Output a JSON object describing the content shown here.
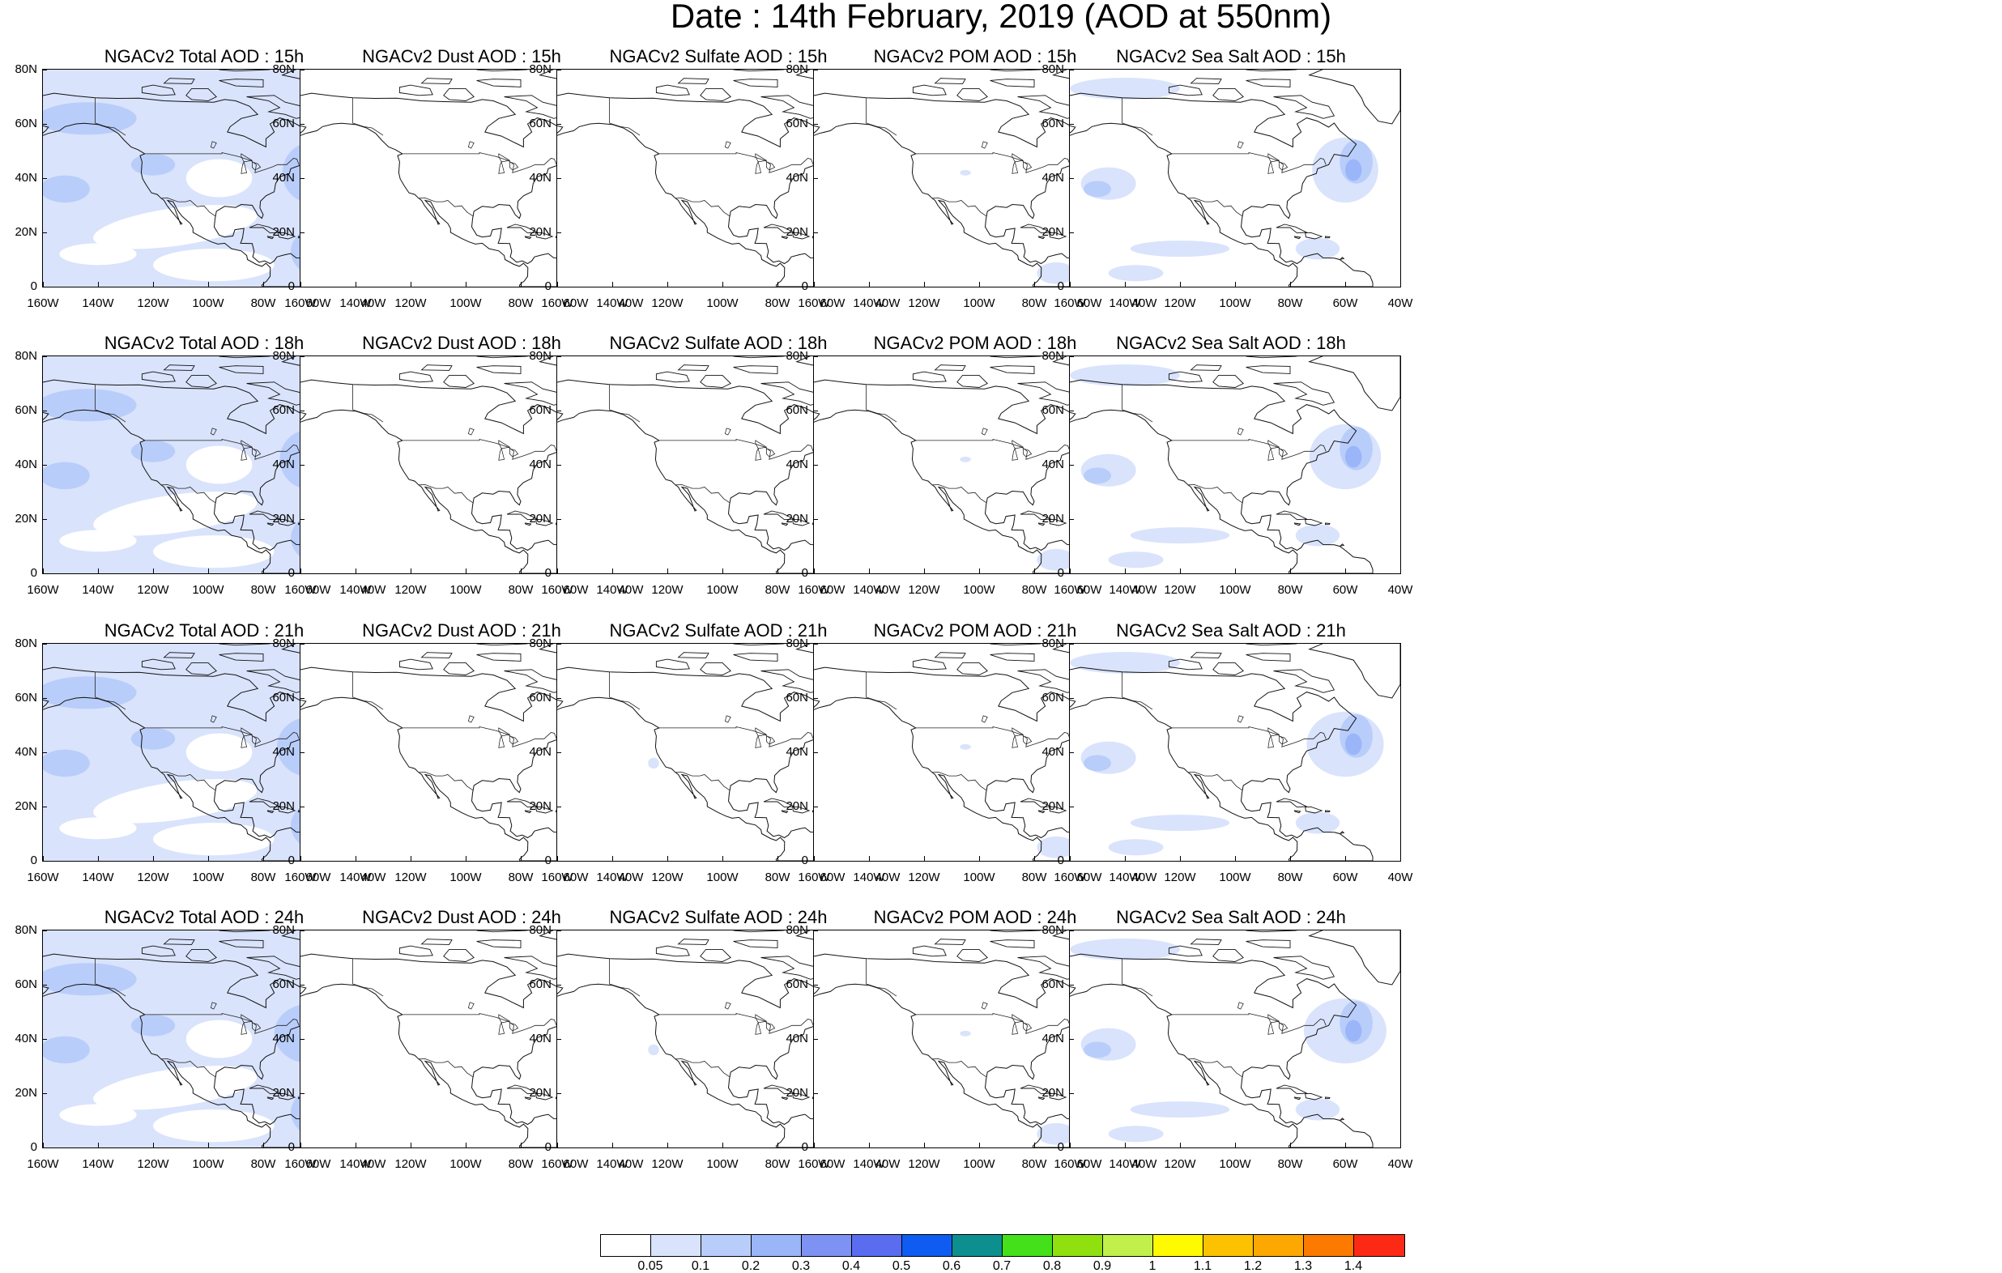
{
  "title": "Date : 14th February, 2019 (AOD at 550nm)",
  "rows": [
    {
      "panels": [
        "NGACv2 Total AOD : 15h",
        "NGACv2 Dust AOD : 15h",
        "NGACv2 Sulfate AOD : 15h",
        "NGACv2 POM AOD : 15h",
        "NGACv2 Sea Salt AOD : 15h"
      ]
    },
    {
      "panels": [
        "NGACv2 Total AOD : 18h",
        "NGACv2 Dust AOD : 18h",
        "NGACv2 Sulfate AOD : 18h",
        "NGACv2 POM AOD : 18h",
        "NGACv2 Sea Salt AOD : 18h"
      ]
    },
    {
      "panels": [
        "NGACv2 Total AOD : 21h",
        "NGACv2 Dust AOD : 21h",
        "NGACv2 Sulfate AOD : 21h",
        "NGACv2 POM AOD : 21h",
        "NGACv2 Sea Salt AOD : 21h"
      ]
    },
    {
      "panels": [
        "NGACv2 Total AOD : 24h",
        "NGACv2 Dust AOD : 24h",
        "NGACv2 Sulfate AOD : 24h",
        "NGACv2 POM AOD : 24h",
        "NGACv2 Sea Salt  AOD : 24h"
      ]
    }
  ],
  "species": [
    "total",
    "dust",
    "sulfate",
    "pom",
    "seasalt"
  ],
  "axes": {
    "lat_labels": [
      "80N",
      "60N",
      "40N",
      "20N",
      "0"
    ],
    "lon_labels": [
      "160W",
      "140W",
      "120W",
      "100W",
      "80W",
      "60W",
      "40W"
    ]
  },
  "colorbar": {
    "colors": [
      "#ffffff",
      "#d9e3fc",
      "#b9cdfa",
      "#9ab6f8",
      "#7e92f4",
      "#5a6cf0",
      "#0f5cf2",
      "#0d8f8f",
      "#44e01a",
      "#90e010",
      "#c2f04a",
      "#fffa00",
      "#fcc200",
      "#fca800",
      "#fc7a00",
      "#fc2a15"
    ],
    "labels": [
      "0.05",
      "0.1",
      "0.2",
      "0.3",
      "0.4",
      "0.5",
      "0.6",
      "0.7",
      "0.8",
      "0.9",
      "1",
      "1.1",
      "1.2",
      "1.3",
      "1.4"
    ]
  }
}
